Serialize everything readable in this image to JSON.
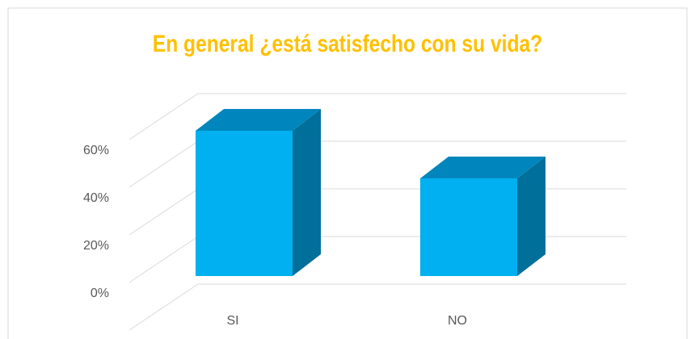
{
  "chart_data": {
    "type": "bar3d",
    "title": "En general ¿está satisfecho con su vida?",
    "categories": [
      "SI",
      "NO"
    ],
    "values": [
      61,
      41
    ],
    "color": "#00b0f0",
    "ylim": [
      0,
      80
    ],
    "yticks": [
      {
        "value": 0,
        "label": "0%"
      },
      {
        "value": 20,
        "label": "20%"
      },
      {
        "value": 40,
        "label": "40%"
      },
      {
        "value": 60,
        "label": "60%"
      }
    ],
    "grid": true
  }
}
